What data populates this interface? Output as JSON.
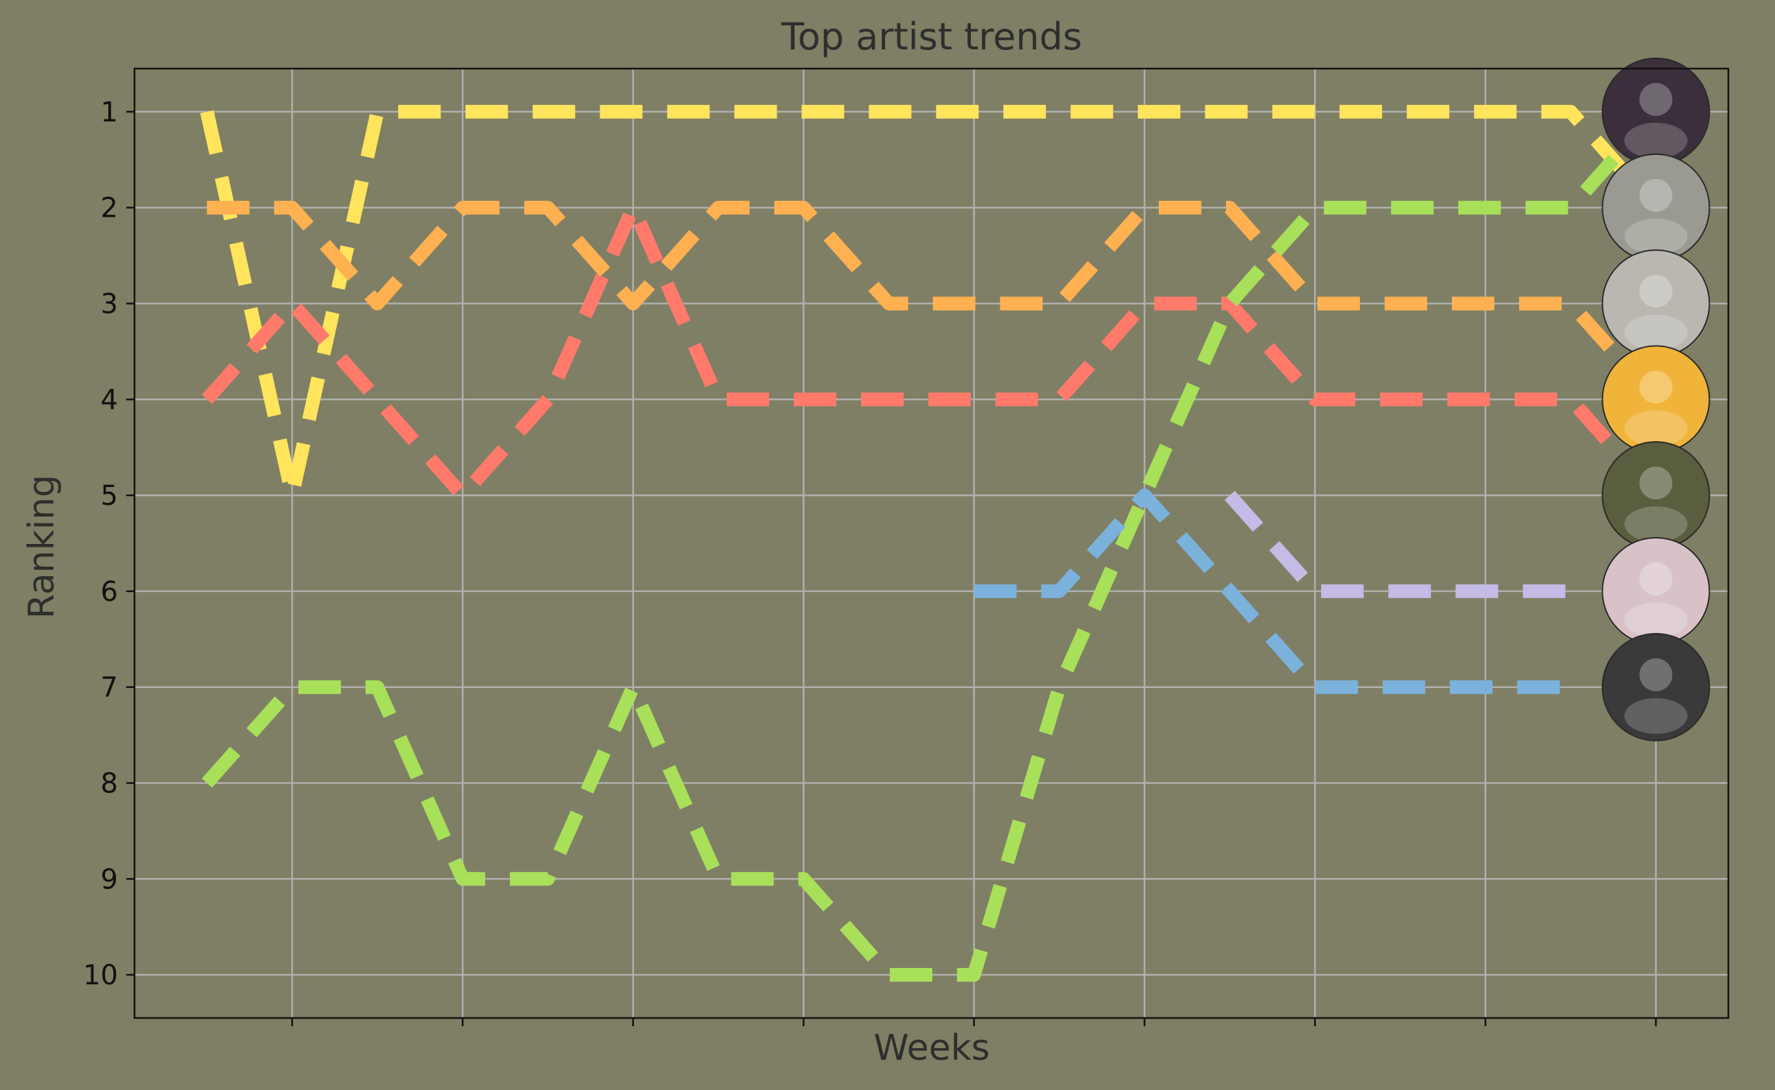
{
  "chart_data": {
    "type": "line",
    "title": "Top artist trends",
    "xlabel": "Weeks",
    "ylabel": "Ranking",
    "x": [
      0,
      1,
      2,
      3,
      4,
      5,
      6,
      7,
      8,
      9,
      10,
      11,
      12,
      13,
      14,
      15,
      16,
      17
    ],
    "ylim": [
      10.45,
      0.55
    ],
    "y_ticks": [
      "1",
      "2",
      "3",
      "4",
      "5",
      "6",
      "7",
      "8",
      "9",
      "10"
    ],
    "y_inverted": true,
    "grid": true,
    "x_tick_labels_visible": false,
    "series": [
      {
        "color": "#ffe45c",
        "values": [
          1,
          5,
          1,
          1,
          1,
          1,
          1,
          1,
          1,
          1,
          1,
          1,
          1,
          1,
          1,
          1,
          1,
          2
        ]
      },
      {
        "color": "#ffb152",
        "values": [
          2,
          2,
          3,
          2,
          2,
          3,
          2,
          2,
          3,
          3,
          3,
          2,
          2,
          3,
          3,
          3,
          3,
          4
        ]
      },
      {
        "color": "#ff7a6a",
        "values": [
          4,
          3,
          4,
          5,
          4,
          2,
          4,
          4,
          4,
          4,
          4,
          3,
          3,
          4,
          4,
          4,
          4,
          5
        ]
      },
      {
        "color": "#a8e05a",
        "values": [
          8,
          7,
          7,
          9,
          9,
          7,
          9,
          9,
          10,
          10,
          7,
          5,
          3,
          2,
          2,
          2,
          2,
          1
        ]
      },
      {
        "color": "#7ab2dc",
        "values": [
          null,
          null,
          null,
          null,
          null,
          null,
          null,
          null,
          null,
          6,
          6,
          5,
          6,
          7,
          7,
          7,
          7,
          null
        ]
      },
      {
        "color": "#c4bbe6",
        "values": [
          null,
          null,
          null,
          null,
          null,
          null,
          null,
          null,
          null,
          null,
          null,
          null,
          5,
          6,
          6,
          6,
          6,
          null
        ]
      }
    ],
    "end_markers": [
      {
        "rank": 1,
        "icon": "artist-photo-icon",
        "fill": "#3a2f3a"
      },
      {
        "rank": 2,
        "icon": "newspaper-cover-icon",
        "fill": "#9a9a92"
      },
      {
        "rank": 3,
        "icon": "band-group-photo-icon",
        "fill": "#b9b7b0"
      },
      {
        "rank": 4,
        "icon": "album-art-icon",
        "fill": "#f0b43a"
      },
      {
        "rank": 5,
        "icon": "artist-photo-icon",
        "fill": "#5a5e3e"
      },
      {
        "rank": 6,
        "icon": "group-photo-icon",
        "fill": "#d8c2c8"
      },
      {
        "rank": 7,
        "icon": "portrait-photo-icon",
        "fill": "#3a3a3a"
      }
    ]
  }
}
